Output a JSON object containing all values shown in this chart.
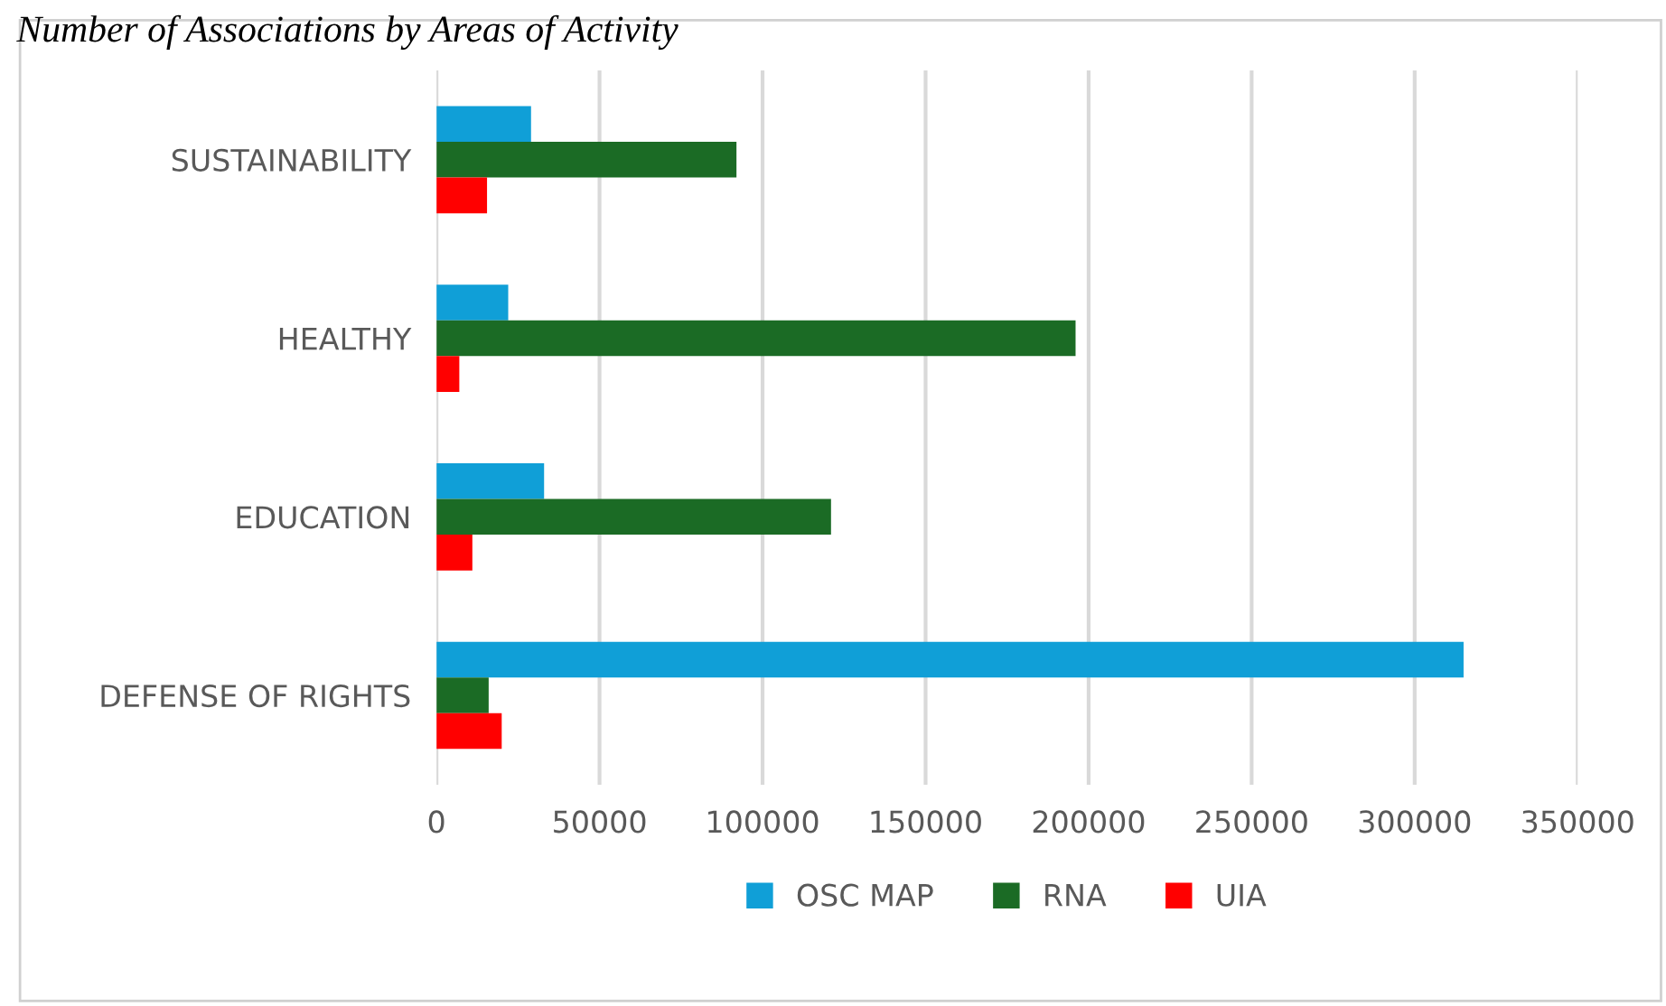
{
  "chart_data": {
    "type": "bar",
    "orientation": "horizontal",
    "title": "Number of Associations by Areas of Activity",
    "categories": [
      "SUSTAINABILITY",
      "HEALTHY",
      "EDUCATION",
      "DEFENSE OF RIGHTS"
    ],
    "series": [
      {
        "name": "OSC MAP",
        "color": "#109fd7",
        "values": [
          29000,
          22000,
          33000,
          315000
        ]
      },
      {
        "name": "RNA",
        "color": "#1b6b25",
        "values": [
          92000,
          196000,
          121000,
          16000
        ]
      },
      {
        "name": "UIA",
        "color": "#ff0000",
        "values": [
          15500,
          7000,
          11000,
          20000
        ]
      }
    ],
    "xlim": [
      0,
      350000
    ],
    "xticks": [
      0,
      50000,
      100000,
      150000,
      200000,
      250000,
      300000,
      350000
    ],
    "grid": "x",
    "legend": "bottom"
  }
}
